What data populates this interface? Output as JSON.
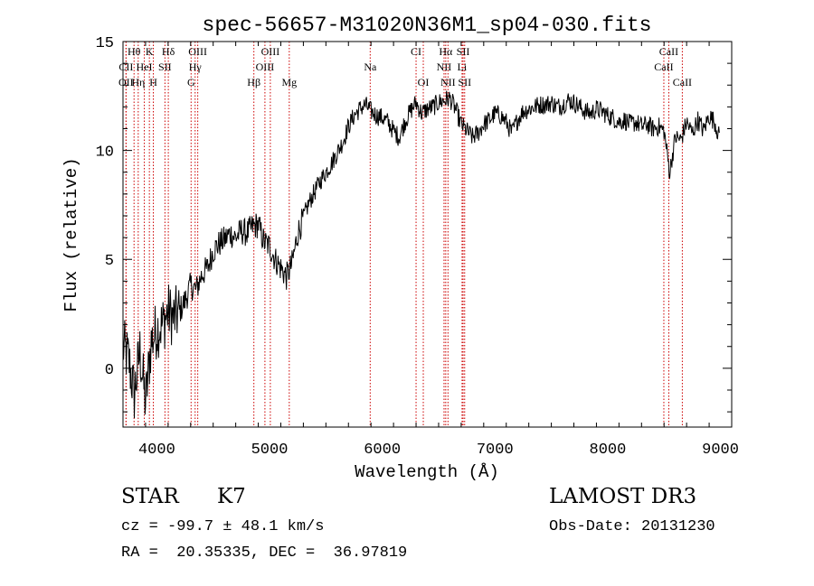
{
  "chart_data": {
    "type": "line",
    "title": "spec-56657-M31020N36M1_sp04-030.fits",
    "xlabel": "Wavelength (Å)",
    "ylabel": "Flux (relative)",
    "xlim": [
      3700,
      9100
    ],
    "ylim": [
      -2.7,
      15.0
    ],
    "xticks": [
      4000,
      5000,
      6000,
      7000,
      8000,
      9000
    ],
    "yticks": [
      0,
      5,
      10,
      15
    ],
    "grid": false,
    "series": [
      {
        "x": [
          3700,
          3750,
          3800,
          3850,
          3900,
          3950,
          4000,
          4050,
          4100,
          4150,
          4200,
          4250,
          4300,
          4350,
          4400,
          4450,
          4500,
          4550,
          4600,
          4650,
          4700,
          4750,
          4800,
          4850,
          4900,
          4950,
          5000,
          5050,
          5100,
          5150,
          5200,
          5250,
          5300,
          5350,
          5400,
          5450,
          5500,
          5550,
          5600,
          5650,
          5700,
          5750,
          5800,
          5850,
          5900,
          5950,
          6000,
          6050,
          6100,
          6150,
          6200,
          6250,
          6300,
          6350,
          6400,
          6450,
          6500,
          6550,
          6600,
          6650,
          6700,
          6750,
          6800,
          6850,
          6900,
          6950,
          7000,
          7050,
          7100,
          7150,
          7200,
          7250,
          7300,
          7350,
          7400,
          7450,
          7500,
          7550,
          7600,
          7650,
          7700,
          7750,
          7800,
          7850,
          7900,
          7950,
          8000,
          8050,
          8100,
          8150,
          8200,
          8250,
          8300,
          8350,
          8400,
          8450,
          8500,
          8550,
          8600,
          8650,
          8700,
          8750,
          8800,
          8850,
          8900,
          8950,
          8990
        ],
        "y": [
          1.0,
          0.4,
          -1.2,
          0.8,
          -1.6,
          1.2,
          1.8,
          2.0,
          2.6,
          2.3,
          2.6,
          3.1,
          3.8,
          3.6,
          4.3,
          4.6,
          5.4,
          5.7,
          5.9,
          6.2,
          6.0,
          6.3,
          6.2,
          6.5,
          6.6,
          5.8,
          5.6,
          5.0,
          4.6,
          4.2,
          4.8,
          6.2,
          6.9,
          7.6,
          8.1,
          8.6,
          9.0,
          9.4,
          9.9,
          10.4,
          11.1,
          11.6,
          11.9,
          12.1,
          11.8,
          11.6,
          11.5,
          11.3,
          10.9,
          10.6,
          11.3,
          11.8,
          12.2,
          11.7,
          11.9,
          12.0,
          12.2,
          12.3,
          12.4,
          11.9,
          11.2,
          10.9,
          10.6,
          10.8,
          11.2,
          11.4,
          11.7,
          11.6,
          11.3,
          10.8,
          11.4,
          11.8,
          11.9,
          12.0,
          12.1,
          12.1,
          12.2,
          12.0,
          12.1,
          12.3,
          12.2,
          12.0,
          11.8,
          11.7,
          11.9,
          11.8,
          11.6,
          11.5,
          11.3,
          11.4,
          11.2,
          11.3,
          11.1,
          11.2,
          11.0,
          11.1,
          10.9,
          9.0,
          10.6,
          10.5,
          11.3,
          10.8,
          11.4,
          10.9,
          11.6,
          11.3,
          10.6
        ]
      }
    ],
    "line_markers": [
      {
        "label": "Hθ",
        "x": 3798,
        "row": 0
      },
      {
        "label": "K",
        "x": 3934,
        "row": 0
      },
      {
        "label": "Hδ",
        "x": 4102,
        "row": 0
      },
      {
        "label": "OIII",
        "x": 4363,
        "row": 0
      },
      {
        "label": "OIII",
        "x": 5007,
        "row": 0
      },
      {
        "label": "CI",
        "x": 6300,
        "row": 0
      },
      {
        "label": "Hα",
        "x": 6563,
        "row": 0
      },
      {
        "label": "SII",
        "x": 6717,
        "row": 0
      },
      {
        "label": "CaII",
        "x": 8542,
        "row": 0
      },
      {
        "label": "CII",
        "x": 3727,
        "row": 1
      },
      {
        "label": "HeI",
        "x": 3889,
        "row": 1
      },
      {
        "label": "SII",
        "x": 4072,
        "row": 1
      },
      {
        "label": "Hγ",
        "x": 4340,
        "row": 1
      },
      {
        "label": "OIII",
        "x": 4959,
        "row": 1
      },
      {
        "label": "Na",
        "x": 5893,
        "row": 1
      },
      {
        "label": "NII",
        "x": 6548,
        "row": 1
      },
      {
        "label": "Li",
        "x": 6708,
        "row": 1
      },
      {
        "label": "CaII",
        "x": 8498,
        "row": 1
      },
      {
        "label": "OII",
        "x": 3727,
        "row": 2
      },
      {
        "label": "Hη",
        "x": 3835,
        "row": 2
      },
      {
        "label": "H",
        "x": 3969,
        "row": 2
      },
      {
        "label": "G",
        "x": 4304,
        "row": 2
      },
      {
        "label": "Hβ",
        "x": 4861,
        "row": 2
      },
      {
        "label": "Mg",
        "x": 5175,
        "row": 2
      },
      {
        "label": "OI",
        "x": 6364,
        "row": 2
      },
      {
        "label": "NII",
        "x": 6583,
        "row": 2
      },
      {
        "label": "SII",
        "x": 6731,
        "row": 2
      },
      {
        "label": "CaII",
        "x": 8662,
        "row": 2
      }
    ],
    "marker_color": "#cc0000"
  },
  "footer": {
    "object_type": "STAR",
    "subclass": "K7",
    "survey": "LAMOST DR3",
    "redshift": "cz = -99.7 ± 48.1 km/s",
    "obs_date": "Obs-Date: 20131230",
    "coords": "RA =  20.35335, DEC =  36.97819"
  }
}
